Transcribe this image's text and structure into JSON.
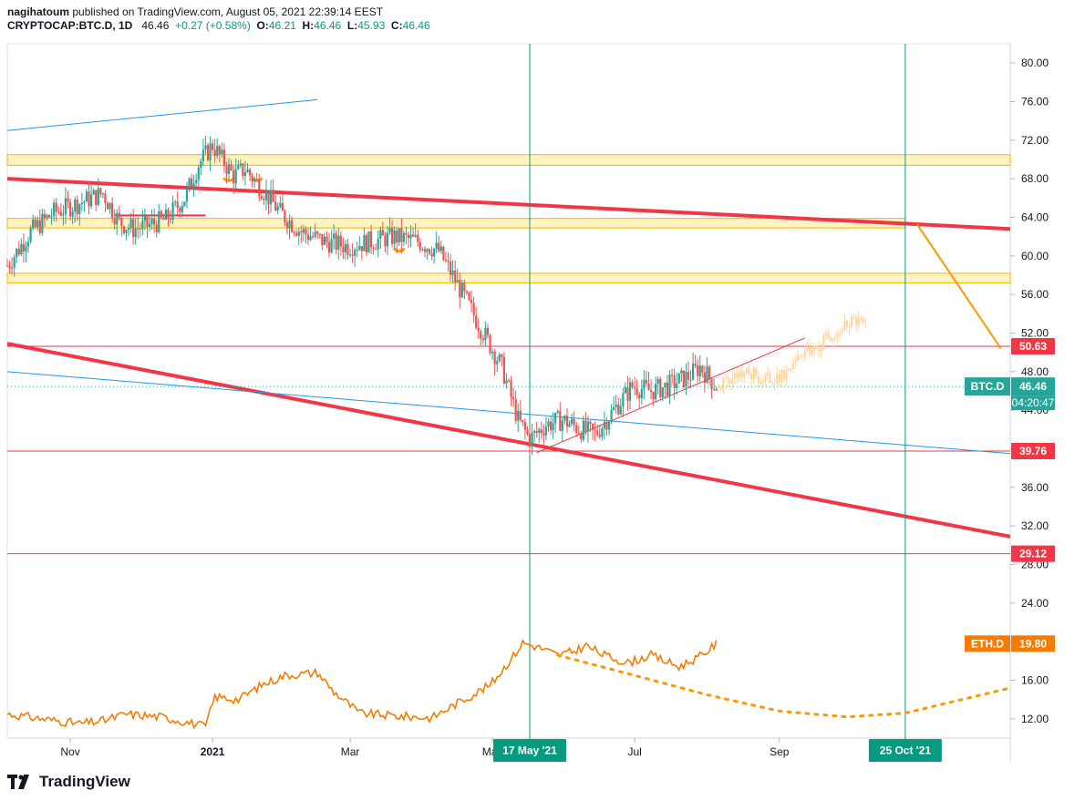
{
  "header": {
    "author": "nagihatoum",
    "published": "published on TradingView.com, August 05, 2021 22:39:14 EEST",
    "symbol": "CRYPTOCAP:BTC.D, 1D",
    "last": "46.46",
    "change": "+0.27 (+0.58%)",
    "open_label": "O:",
    "open": "46.21",
    "high_label": "H:",
    "high": "46.46",
    "low_label": "L:",
    "low": "45.93",
    "close_label": "C:",
    "close": "46.46"
  },
  "branding": {
    "logo_text": "TradingView"
  },
  "colors": {
    "up": "#26a69a",
    "down": "#ef5350",
    "red_line": "#f23645",
    "blue_line": "#2196f3",
    "orange": "#f57c00",
    "zone_fill": "#fff3c4",
    "zone_border": "#f0c419",
    "teal": "#089981",
    "projection": "#ffd7a0"
  },
  "chart_data": {
    "type": "candlestick",
    "title": "",
    "y_axis": {
      "range": [
        10,
        82
      ],
      "ticks": [
        "80.00",
        "76.00",
        "72.00",
        "68.00",
        "64.00",
        "60.00",
        "56.00",
        "52.00",
        "48.00",
        "44.00",
        "40.00",
        "36.00",
        "32.00",
        "28.00",
        "24.00",
        "20.00",
        "16.00",
        "12.00"
      ]
    },
    "x_axis": {
      "range": [
        "2020-10-05",
        "2021-12-09"
      ],
      "ticks": [
        {
          "label": "Nov",
          "date": "2020-11-01"
        },
        {
          "label": "2021",
          "date": "2021-01-01"
        },
        {
          "label": "Mar",
          "date": "2021-03-01"
        },
        {
          "label": "May",
          "date": "2021-05-01"
        },
        {
          "label": "Jul",
          "date": "2021-07-01"
        },
        {
          "label": "Sep",
          "date": "2021-09-01"
        }
      ],
      "date_markers": [
        {
          "label": "17 May '21",
          "date": "2021-05-17"
        },
        {
          "label": "25 Oct '21",
          "date": "2021-10-25"
        }
      ]
    },
    "series": [
      {
        "name": "BTC.D",
        "kind": "candles",
        "last_value": "46.46",
        "countdown": "04:20:47",
        "points": [
          [
            "2020-10-05",
            59.0
          ],
          [
            "2020-10-15",
            62.5
          ],
          [
            "2020-10-25",
            64.5
          ],
          [
            "2020-11-05",
            65.5
          ],
          [
            "2020-11-15",
            66.5
          ],
          [
            "2020-11-22",
            63.5
          ],
          [
            "2020-11-28",
            62.8
          ],
          [
            "2020-12-05",
            63.2
          ],
          [
            "2020-12-12",
            63.8
          ],
          [
            "2020-12-20",
            66.0
          ],
          [
            "2020-12-26",
            69.5
          ],
          [
            "2021-01-01",
            71.5
          ],
          [
            "2021-01-05",
            70.0
          ],
          [
            "2021-01-10",
            68.3
          ],
          [
            "2021-01-15",
            69.0
          ],
          [
            "2021-01-22",
            67.0
          ],
          [
            "2021-01-30",
            64.5
          ],
          [
            "2021-02-08",
            62.5
          ],
          [
            "2021-02-18",
            61.5
          ],
          [
            "2021-02-28",
            61.0
          ],
          [
            "2021-03-10",
            61.5
          ],
          [
            "2021-03-20",
            62.0
          ],
          [
            "2021-03-30",
            61.5
          ],
          [
            "2021-04-08",
            60.5
          ],
          [
            "2021-04-15",
            57.5
          ],
          [
            "2021-04-25",
            53.0
          ],
          [
            "2021-05-05",
            48.5
          ],
          [
            "2021-05-12",
            43.0
          ],
          [
            "2021-05-17",
            41.0
          ],
          [
            "2021-05-24",
            42.5
          ],
          [
            "2021-05-31",
            43.0
          ],
          [
            "2021-06-08",
            42.0
          ],
          [
            "2021-06-14",
            41.5
          ],
          [
            "2021-06-22",
            44.0
          ],
          [
            "2021-06-30",
            46.5
          ],
          [
            "2021-07-08",
            46.0
          ],
          [
            "2021-07-15",
            46.5
          ],
          [
            "2021-07-24",
            47.5
          ],
          [
            "2021-07-29",
            48.5
          ],
          [
            "2021-08-05",
            46.46
          ]
        ]
      },
      {
        "name": "ETH.D",
        "kind": "line",
        "last_value": "19.80",
        "points": [
          [
            "2020-10-05",
            12.5
          ],
          [
            "2020-10-20",
            12.0
          ],
          [
            "2020-11-05",
            11.5
          ],
          [
            "2020-11-15",
            11.8
          ],
          [
            "2020-11-25",
            12.5
          ],
          [
            "2020-12-10",
            12.2
          ],
          [
            "2020-12-22",
            11.6
          ],
          [
            "2020-12-29",
            11.2
          ],
          [
            "2021-01-02",
            14.3
          ],
          [
            "2021-01-12",
            14.0
          ],
          [
            "2021-01-22",
            15.5
          ],
          [
            "2021-02-01",
            16.5
          ],
          [
            "2021-02-15",
            16.8
          ],
          [
            "2021-02-22",
            14.8
          ],
          [
            "2021-03-05",
            12.6
          ],
          [
            "2021-03-20",
            12.3
          ],
          [
            "2021-04-05",
            12.1
          ],
          [
            "2021-04-15",
            13.5
          ],
          [
            "2021-04-30",
            15.5
          ],
          [
            "2021-05-10",
            18.5
          ],
          [
            "2021-05-14",
            19.9
          ],
          [
            "2021-05-22",
            19.3
          ],
          [
            "2021-05-29",
            18.6
          ],
          [
            "2021-06-05",
            19.0
          ],
          [
            "2021-06-10",
            19.6
          ],
          [
            "2021-06-18",
            18.6
          ],
          [
            "2021-06-28",
            17.8
          ],
          [
            "2021-07-08",
            18.6
          ],
          [
            "2021-07-20",
            17.4
          ],
          [
            "2021-07-30",
            18.6
          ],
          [
            "2021-08-05",
            19.8
          ]
        ]
      }
    ],
    "horizontal_levels": [
      {
        "value": 50.63,
        "label": "50.63"
      },
      {
        "value": 39.76,
        "label": "39.76"
      },
      {
        "value": 29.12,
        "label": "29.12"
      }
    ]
  }
}
